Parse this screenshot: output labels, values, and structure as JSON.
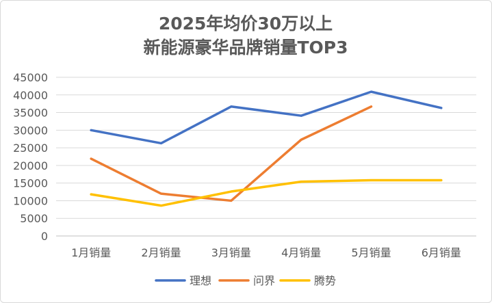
{
  "chart_data": {
    "type": "line",
    "title_line1": "2025年均价30万以上",
    "title_line2": "新能源豪华品牌销量TOP3",
    "categories": [
      "1月销量",
      "2月销量",
      "3月销量",
      "4月销量",
      "5月销量",
      "6月销量"
    ],
    "ylim": [
      0,
      45000
    ],
    "yticks": [
      0,
      5000,
      10000,
      15000,
      20000,
      25000,
      30000,
      35000,
      40000,
      45000
    ],
    "grid": true,
    "legend_position": "bottom",
    "series": [
      {
        "name": "理想",
        "color": "#4472C4",
        "values": [
          30000,
          26300,
          36700,
          34100,
          40900,
          36300
        ]
      },
      {
        "name": "问界",
        "color": "#ED7D31",
        "values": [
          21900,
          12000,
          10000,
          27300,
          36700,
          null
        ]
      },
      {
        "name": "腾势",
        "color": "#FFC000",
        "values": [
          11800,
          8600,
          12600,
          15400,
          15800,
          15800
        ]
      }
    ]
  }
}
